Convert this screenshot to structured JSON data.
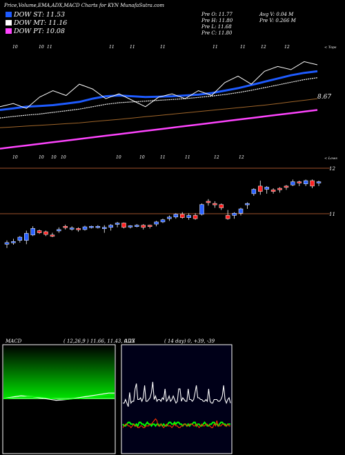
{
  "header": {
    "title": "Price,Volume,EMA,ADX,MACD Charts for KYN  MunafaSutra.com",
    "ohlc": {
      "open": "Pre   O: 11.77",
      "high": "Pre   H: 11.80",
      "low": "Pre   L: 11.68",
      "close": "Pre   C: 11.80"
    },
    "volume": {
      "avg": "Avg V: 0.04  M",
      "pre": "Pre   V: 0.266  M"
    }
  },
  "legend": [
    {
      "label": "DOW ST: 11.53",
      "color": "#1e5bff"
    },
    {
      "label": "DOW MT: 11.16",
      "color": "#ffffff"
    },
    {
      "label": "DOW PT: 10.08",
      "color": "#ff44ff"
    }
  ],
  "ema_panel": {
    "date_labels_top": [
      "10",
      "10",
      "11",
      "11",
      "11",
      "11",
      "11",
      "11",
      "12",
      "12"
    ],
    "date_labels_bottom": [
      "10",
      "10",
      "10",
      "10",
      "10",
      "10",
      "11",
      "11",
      "12",
      "12"
    ],
    "value_label": "8.67",
    "corner_top": "< Tops",
    "corner_bottom": "< Lows"
  },
  "price_panel": {
    "y_labels": [
      "12",
      "11"
    ]
  },
  "macd_panel": {
    "label": "MACD",
    "params": "( 12,26,9 ) 11.66, 11.43, 0.23"
  },
  "adx_panel": {
    "label": "ADX",
    "params": "( 14  day) 0, +39, -39"
  },
  "chart_data": [
    {
      "type": "line",
      "name": "ema-trend",
      "series": [
        {
          "name": "DOW ST",
          "color": "#1e5bff",
          "values": [
            -0.4,
            -0.3,
            -0.2,
            -0.15,
            -0.1,
            0.0,
            0.1,
            0.3,
            0.45,
            0.5,
            0.45,
            0.4,
            0.42,
            0.45,
            0.5,
            0.55,
            0.65,
            0.8,
            0.95,
            1.15,
            1.35,
            1.55,
            1.75,
            1.9,
            2.0
          ]
        },
        {
          "name": "DOW MT",
          "color": "#ffffff",
          "values": [
            -0.9,
            -0.8,
            -0.72,
            -0.65,
            -0.55,
            -0.45,
            -0.35,
            -0.2,
            -0.05,
            0.05,
            0.1,
            0.15,
            0.2,
            0.25,
            0.3,
            0.38,
            0.46,
            0.56,
            0.68,
            0.82,
            0.98,
            1.15,
            1.32,
            1.48,
            1.6
          ]
        },
        {
          "name": "DOW PT",
          "color": "#ff44ff",
          "values": [
            -2.8,
            -2.7,
            -2.6,
            -2.5,
            -2.4,
            -2.3,
            -2.2,
            -2.1,
            -2.0,
            -1.9,
            -1.8,
            -1.7,
            -1.6,
            -1.5,
            -1.4,
            -1.3,
            -1.2,
            -1.1,
            -1.0,
            -0.9,
            -0.8,
            -0.7,
            -0.6,
            -0.5,
            -0.4
          ]
        },
        {
          "name": "",
          "color": "#a0662a",
          "values": [
            -1.5,
            -1.45,
            -1.4,
            -1.35,
            -1.3,
            -1.25,
            -1.2,
            -1.12,
            -1.05,
            -0.98,
            -0.9,
            -0.82,
            -0.74,
            -0.66,
            -0.58,
            -0.5,
            -0.42,
            -0.34,
            -0.26,
            -0.18,
            -0.1,
            0.0,
            0.1,
            0.2,
            0.3
          ]
        },
        {
          "name": "",
          "color": "#ffffff",
          "values": [
            -0.2,
            0.0,
            -0.3,
            0.4,
            0.8,
            0.5,
            1.2,
            0.9,
            0.3,
            0.6,
            0.2,
            -0.2,
            0.4,
            0.6,
            0.3,
            0.8,
            0.5,
            1.3,
            1.7,
            1.2,
            2.0,
            2.3,
            2.1,
            2.6,
            2.4
          ]
        }
      ],
      "ylim": [
        -3.2,
        3.0
      ]
    },
    {
      "type": "candlestick",
      "name": "price",
      "ylim": [
        10.35,
        12.05
      ],
      "candles": [
        {
          "o": 10.55,
          "h": 10.62,
          "l": 10.48,
          "c": 10.58,
          "up": true
        },
        {
          "o": 10.58,
          "h": 10.65,
          "l": 10.54,
          "c": 10.6,
          "up": true
        },
        {
          "o": 10.62,
          "h": 10.7,
          "l": 10.58,
          "c": 10.68,
          "up": true
        },
        {
          "o": 10.62,
          "h": 10.8,
          "l": 10.55,
          "c": 10.75,
          "up": true
        },
        {
          "o": 10.72,
          "h": 10.88,
          "l": 10.7,
          "c": 10.84,
          "up": true
        },
        {
          "o": 10.8,
          "h": 10.82,
          "l": 10.74,
          "c": 10.76,
          "up": false
        },
        {
          "o": 10.78,
          "h": 10.8,
          "l": 10.7,
          "c": 10.73,
          "up": false
        },
        {
          "o": 10.72,
          "h": 10.76,
          "l": 10.68,
          "c": 10.7,
          "up": false
        },
        {
          "o": 10.8,
          "h": 10.86,
          "l": 10.76,
          "c": 10.82,
          "up": true
        },
        {
          "o": 10.88,
          "h": 10.91,
          "l": 10.82,
          "c": 10.86,
          "up": false
        },
        {
          "o": 10.84,
          "h": 10.88,
          "l": 10.8,
          "c": 10.85,
          "up": true
        },
        {
          "o": 10.84,
          "h": 10.86,
          "l": 10.78,
          "c": 10.82,
          "up": false
        },
        {
          "o": 10.82,
          "h": 10.89,
          "l": 10.8,
          "c": 10.87,
          "up": true
        },
        {
          "o": 10.86,
          "h": 10.89,
          "l": 10.84,
          "c": 10.88,
          "up": true
        },
        {
          "o": 10.86,
          "h": 10.9,
          "l": 10.84,
          "c": 10.88,
          "up": true
        },
        {
          "o": 10.86,
          "h": 10.9,
          "l": 10.76,
          "c": 10.86,
          "up": true
        },
        {
          "o": 10.86,
          "h": 10.92,
          "l": 10.8,
          "c": 10.9,
          "up": true
        },
        {
          "o": 10.92,
          "h": 10.96,
          "l": 10.86,
          "c": 10.94,
          "up": true
        },
        {
          "o": 10.94,
          "h": 10.95,
          "l": 10.84,
          "c": 10.86,
          "up": false
        },
        {
          "o": 10.88,
          "h": 10.9,
          "l": 10.84,
          "c": 10.89,
          "up": true
        },
        {
          "o": 10.88,
          "h": 10.92,
          "l": 10.86,
          "c": 10.9,
          "up": true
        },
        {
          "o": 10.9,
          "h": 10.92,
          "l": 10.82,
          "c": 10.86,
          "up": false
        },
        {
          "o": 10.88,
          "h": 10.91,
          "l": 10.84,
          "c": 10.9,
          "up": false
        },
        {
          "o": 10.92,
          "h": 10.98,
          "l": 10.88,
          "c": 10.96,
          "up": true
        },
        {
          "o": 10.96,
          "h": 11.02,
          "l": 10.94,
          "c": 11.0,
          "up": true
        },
        {
          "o": 11.02,
          "h": 11.08,
          "l": 10.98,
          "c": 11.05,
          "up": true
        },
        {
          "o": 11.05,
          "h": 11.12,
          "l": 11.02,
          "c": 11.1,
          "up": true
        },
        {
          "o": 11.1,
          "h": 11.14,
          "l": 11.02,
          "c": 11.04,
          "up": false
        },
        {
          "o": 11.04,
          "h": 11.12,
          "l": 11.0,
          "c": 11.08,
          "up": true
        },
        {
          "o": 11.08,
          "h": 11.12,
          "l": 11.0,
          "c": 11.02,
          "up": false
        },
        {
          "o": 11.1,
          "h": 11.3,
          "l": 11.08,
          "c": 11.28,
          "up": true
        },
        {
          "o": 11.32,
          "h": 11.38,
          "l": 11.26,
          "c": 11.34,
          "up": false
        },
        {
          "o": 11.3,
          "h": 11.34,
          "l": 11.22,
          "c": 11.28,
          "up": false
        },
        {
          "o": 11.28,
          "h": 11.3,
          "l": 11.18,
          "c": 11.22,
          "up": false
        },
        {
          "o": 11.08,
          "h": 11.18,
          "l": 11.0,
          "c": 11.02,
          "up": false
        },
        {
          "o": 11.08,
          "h": 11.14,
          "l": 11.02,
          "c": 11.12,
          "up": true
        },
        {
          "o": 11.12,
          "h": 11.22,
          "l": 11.08,
          "c": 11.2,
          "up": true
        },
        {
          "o": 11.28,
          "h": 11.32,
          "l": 11.2,
          "c": 11.3,
          "up": true
        },
        {
          "o": 11.48,
          "h": 11.58,
          "l": 11.44,
          "c": 11.56,
          "up": true
        },
        {
          "o": 11.62,
          "h": 11.72,
          "l": 11.46,
          "c": 11.52,
          "up": false
        },
        {
          "o": 11.56,
          "h": 11.62,
          "l": 11.48,
          "c": 11.6,
          "up": true
        },
        {
          "o": 11.52,
          "h": 11.58,
          "l": 11.48,
          "c": 11.55,
          "up": false
        },
        {
          "o": 11.55,
          "h": 11.6,
          "l": 11.5,
          "c": 11.58,
          "up": false
        },
        {
          "o": 11.6,
          "h": 11.64,
          "l": 11.55,
          "c": 11.62,
          "up": false
        },
        {
          "o": 11.7,
          "h": 11.74,
          "l": 11.62,
          "c": 11.64,
          "up": true
        },
        {
          "o": 11.7,
          "h": 11.72,
          "l": 11.62,
          "c": 11.68,
          "up": false
        },
        {
          "o": 11.66,
          "h": 11.74,
          "l": 11.62,
          "c": 11.72,
          "up": true
        },
        {
          "o": 11.72,
          "h": 11.74,
          "l": 11.58,
          "c": 11.62,
          "up": false
        },
        {
          "o": 11.7,
          "h": 11.72,
          "l": 11.62,
          "c": 11.68,
          "up": true
        }
      ]
    },
    {
      "type": "line",
      "name": "macd",
      "series": [
        {
          "name": "MACD",
          "color": "#ffffff",
          "values": [
            0.0,
            0.05,
            0.1,
            0.15,
            0.12,
            0.1,
            0.05,
            0.0,
            -0.05,
            -0.1,
            -0.08,
            -0.05,
            0.0,
            0.05,
            0.1,
            0.15,
            0.2,
            0.25,
            0.3,
            0.3
          ]
        },
        {
          "name": "Signal",
          "color": "#00ff00",
          "values": [
            0.0,
            0.02,
            0.05,
            0.08,
            0.1,
            0.1,
            0.08,
            0.05,
            0.0,
            -0.03,
            -0.05,
            -0.05,
            -0.02,
            0.0,
            0.04,
            0.08,
            0.12,
            0.16,
            0.2,
            0.23
          ]
        }
      ],
      "ylim": [
        -3.0,
        3.0
      ]
    },
    {
      "type": "line",
      "name": "adx",
      "series": [
        {
          "name": "ADX",
          "color": "#ffffff",
          "values": [
            20,
            20,
            22,
            20,
            18,
            26,
            20,
            21,
            21,
            28,
            31,
            22,
            22,
            23,
            21,
            23,
            30,
            21,
            21,
            22,
            23,
            26,
            32,
            22,
            24,
            21,
            22,
            22,
            21,
            23,
            22,
            28,
            21,
            22,
            24,
            21,
            22,
            24,
            22,
            20,
            21,
            28,
            28,
            21,
            23,
            22,
            21,
            21,
            28,
            22,
            22,
            21,
            22,
            26,
            30,
            23,
            23,
            22,
            22,
            21,
            21,
            22,
            21,
            28,
            21,
            20,
            20,
            22,
            22,
            22,
            21,
            21,
            22,
            24,
            30,
            22,
            20,
            22,
            23,
            20
          ]
        },
        {
          "name": "+DI",
          "color": "#00ff00",
          "values": [
            12,
            11,
            11,
            12,
            13,
            13,
            12,
            12,
            12,
            11,
            12,
            11,
            13,
            13,
            12,
            12,
            11,
            12,
            13,
            12,
            12,
            11,
            12,
            12,
            11,
            12,
            12,
            11,
            12,
            11,
            12,
            11,
            11,
            12,
            13,
            13,
            12,
            12,
            13,
            12,
            13,
            13,
            12,
            12,
            11,
            12,
            12,
            11,
            12,
            11,
            12,
            12,
            13,
            13,
            11,
            12,
            12,
            11,
            11,
            12,
            13,
            12,
            11,
            11,
            12,
            12,
            13,
            13,
            12,
            12,
            11,
            12,
            13,
            13,
            12,
            12,
            11,
            12,
            12,
            12
          ]
        },
        {
          "name": "-DI",
          "color": "#ff3300",
          "values": [
            10,
            11,
            12,
            12,
            11,
            11,
            10,
            11,
            12,
            11,
            11,
            10,
            10,
            11,
            11,
            10,
            10,
            11,
            11,
            11,
            12,
            12,
            13,
            14,
            15,
            14,
            11,
            11,
            12,
            11,
            10,
            11,
            12,
            11,
            11,
            11,
            10,
            11,
            12,
            11,
            11,
            10,
            10,
            11,
            11,
            12,
            12,
            11,
            11,
            12,
            12,
            12,
            11,
            11,
            12,
            11,
            10,
            11,
            12,
            11,
            11,
            12,
            12,
            11,
            11,
            10,
            10,
            12,
            11,
            14,
            11,
            11,
            11,
            12,
            12,
            11,
            11,
            12,
            11,
            11
          ]
        }
      ],
      "ylim": [
        0,
        60
      ]
    }
  ]
}
